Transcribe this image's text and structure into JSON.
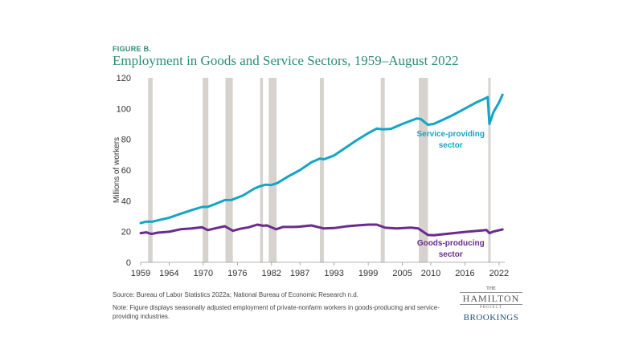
{
  "figure_label": "FIGURE B.",
  "title": "Employment in Goods and Service Sectors, 1959–August 2022",
  "source": "Source: Bureau of Labor Statistics 2022a; National Bureau of Economic Research n.d.",
  "note": "Note: Figure displays seasonally adjusted employment of private-nonfarm workers in goods-producing and service-providing industries.",
  "logo": {
    "the": "THE",
    "name": "HAMILTON",
    "project": "PROJECT",
    "org": "BROOKINGS"
  },
  "colors": {
    "service": "#14a5c4",
    "goods": "#6a2c8c",
    "recession": "#d6d3cf",
    "title": "#2e8b77"
  },
  "chart_data": {
    "type": "line",
    "title": "Employment in Goods and Service Sectors, 1959–August 2022",
    "xlabel": "",
    "ylabel": "Millions of workers",
    "xlim": [
      1959,
      2023
    ],
    "ylim": [
      0,
      120
    ],
    "y_ticks": [
      0,
      20,
      40,
      60,
      80,
      100,
      120
    ],
    "x_ticks": [
      1959,
      1964,
      1970,
      1976,
      1982,
      1987,
      1993,
      1999,
      2005,
      2010,
      2016,
      2022
    ],
    "recessions": [
      [
        1960.3,
        1961.1
      ],
      [
        1969.9,
        1970.9
      ],
      [
        1973.9,
        1975.2
      ],
      [
        1980.0,
        1980.5
      ],
      [
        1981.5,
        1982.9
      ],
      [
        1990.5,
        1991.2
      ],
      [
        2001.2,
        2001.9
      ],
      [
        2007.9,
        2009.5
      ],
      [
        2020.1,
        2020.4
      ]
    ],
    "series": [
      {
        "name": "Service-providing sector",
        "label_lines": [
          "Service-providing",
          "sector"
        ],
        "color": "#14a5c4",
        "x": [
          1959,
          1960,
          1961,
          1962,
          1964,
          1966,
          1968,
          1969.8,
          1970.8,
          1972,
          1973.8,
          1975,
          1977,
          1979,
          1980,
          1981,
          1982,
          1983,
          1985,
          1987,
          1989,
          1990.5,
          1991.2,
          1993,
          1995,
          1997,
          1999,
          2000.5,
          2001.5,
          2003,
          2005,
          2007.5,
          2008.2,
          2009.5,
          2010.5,
          2012,
          2014,
          2016,
          2018,
          2019.5,
          2020.0,
          2020.3,
          2021,
          2022,
          2022.6
        ],
        "y": [
          25.5,
          26.5,
          26.4,
          27.3,
          29.0,
          31.5,
          34.0,
          36.0,
          36.1,
          37.8,
          40.5,
          40.6,
          43.5,
          48.0,
          49.5,
          50.5,
          50.3,
          51.5,
          56.0,
          60.0,
          65.0,
          67.5,
          67.0,
          69.5,
          74.5,
          79.5,
          84.0,
          87.0,
          86.5,
          86.8,
          90.0,
          93.5,
          93.3,
          89.5,
          90.0,
          92.5,
          96.0,
          100.0,
          104.0,
          106.5,
          107.5,
          90.0,
          97.5,
          104.0,
          109.0
        ]
      },
      {
        "name": "Goods-producing sector",
        "label_lines": [
          "Goods-producing",
          "sector"
        ],
        "color": "#6a2c8c",
        "x": [
          1959,
          1960,
          1960.8,
          1961.2,
          1962,
          1964,
          1966,
          1968,
          1969.8,
          1970.8,
          1972,
          1973.8,
          1975.2,
          1976.5,
          1978,
          1979.5,
          1980.5,
          1981.2,
          1982.8,
          1984,
          1986,
          1987,
          1989,
          1991.2,
          1993,
          1995,
          1997,
          1999,
          2000.5,
          2002,
          2004,
          2006.5,
          2007.8,
          2009.5,
          2010.5,
          2012,
          2014,
          2016,
          2018,
          2019.8,
          2020.3,
          2021,
          2022.6
        ],
        "y": [
          19.0,
          19.5,
          18.5,
          18.7,
          19.3,
          19.9,
          21.5,
          22.0,
          22.8,
          21.0,
          22.0,
          23.5,
          20.5,
          21.8,
          22.8,
          24.5,
          23.8,
          24.0,
          21.5,
          23.0,
          23.0,
          23.2,
          24.0,
          22.0,
          22.3,
          23.3,
          24.0,
          24.5,
          24.5,
          22.5,
          22.0,
          22.6,
          22.0,
          17.8,
          17.6,
          18.2,
          19.0,
          19.8,
          20.4,
          21.0,
          19.0,
          20.0,
          21.4
        ]
      }
    ]
  }
}
